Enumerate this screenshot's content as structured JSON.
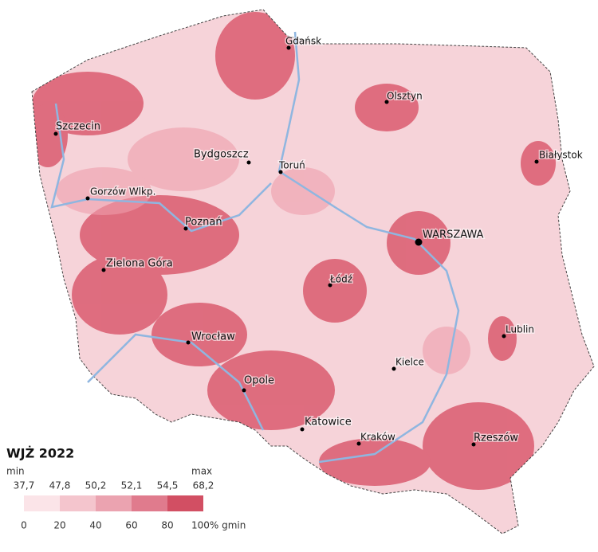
{
  "map": {
    "cities": [
      {
        "name": "Gdańsk"
      },
      {
        "name": "Olsztyn"
      },
      {
        "name": "Szczecin"
      },
      {
        "name": "Białystok"
      },
      {
        "name": "Bydgoszcz"
      },
      {
        "name": "Toruń"
      },
      {
        "name": "Gorzów Wlkp."
      },
      {
        "name": "Poznań"
      },
      {
        "name": "WARSZAWA"
      },
      {
        "name": "Zielona Góra"
      },
      {
        "name": "Łódź"
      },
      {
        "name": "Lublin"
      },
      {
        "name": "Wrocław"
      },
      {
        "name": "Kielce"
      },
      {
        "name": "Opole"
      },
      {
        "name": "Katowice"
      },
      {
        "name": "Kraków"
      },
      {
        "name": "Rzeszów"
      }
    ]
  },
  "legend": {
    "title": "WJŻ 2022",
    "min_label": "min",
    "max_label": "max",
    "thresholds": [
      "37,7",
      "47,8",
      "50,2",
      "52,1",
      "54,5",
      "68,2"
    ],
    "percentiles": [
      "0",
      "20",
      "40",
      "60",
      "80",
      "100% gmin"
    ],
    "colors": [
      "#fbe4e8",
      "#f4c5cd",
      "#eba3b0",
      "#e07b8d",
      "#d24f63"
    ]
  }
}
